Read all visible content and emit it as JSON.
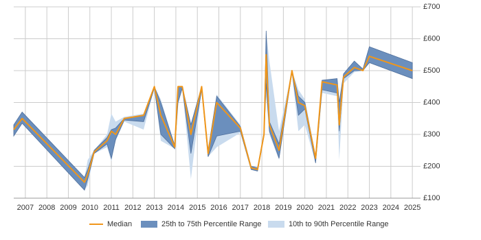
{
  "chart_data": {
    "type": "line",
    "x": [
      2006.46,
      2006.85,
      2009.75,
      2009.9,
      2010.2,
      2010.8,
      2011.0,
      2011.2,
      2011.6,
      2012.5,
      2013.0,
      2013.3,
      2013.95,
      2014.1,
      2014.3,
      2014.7,
      2015.2,
      2015.5,
      2015.9,
      2017.0,
      2017.5,
      2017.8,
      2018.1,
      2018.2,
      2018.35,
      2018.8,
      2019.4,
      2019.7,
      2020.0,
      2020.5,
      2020.8,
      2021.5,
      2021.6,
      2021.8,
      2022.3,
      2022.7,
      2023.0,
      2025.0
    ],
    "series": [
      {
        "name": "Median",
        "color": "#f0961a",
        "values": [
          315,
          350,
          150,
          175,
          245,
          280,
          310,
          300,
          350,
          360,
          450,
          360,
          260,
          450,
          450,
          300,
          450,
          240,
          400,
          320,
          195,
          190,
          300,
          550,
          330,
          250,
          500,
          400,
          390,
          225,
          465,
          455,
          330,
          480,
          510,
          500,
          545,
          500
        ]
      },
      {
        "name": "25th to 75th Percentile Range",
        "color": "#6b8fbd",
        "low": [
          295,
          335,
          125,
          160,
          240,
          270,
          225,
          285,
          345,
          340,
          445,
          300,
          255,
          400,
          445,
          240,
          440,
          230,
          295,
          310,
          190,
          185,
          295,
          460,
          310,
          225,
          495,
          360,
          380,
          210,
          440,
          430,
          310,
          475,
          500,
          500,
          525,
          475
        ],
        "high": [
          330,
          370,
          165,
          190,
          250,
          290,
          315,
          320,
          350,
          360,
          450,
          400,
          265,
          450,
          450,
          330,
          450,
          250,
          420,
          325,
          200,
          195,
          305,
          625,
          340,
          270,
          500,
          420,
          400,
          230,
          470,
          475,
          400,
          490,
          530,
          505,
          575,
          525
        ]
      },
      {
        "name": "10th to 90th Percentile Range",
        "color": "#c9dbee",
        "low": [
          295,
          335,
          125,
          140,
          240,
          260,
          215,
          280,
          340,
          315,
          445,
          280,
          255,
          400,
          445,
          160,
          440,
          230,
          260,
          305,
          190,
          185,
          290,
          420,
          300,
          220,
          490,
          310,
          330,
          210,
          430,
          420,
          220,
          460,
          495,
          500,
          525,
          475
        ],
        "high": [
          330,
          370,
          165,
          220,
          250,
          300,
          365,
          340,
          355,
          365,
          450,
          410,
          265,
          450,
          450,
          335,
          450,
          250,
          425,
          330,
          200,
          195,
          305,
          625,
          530,
          310,
          500,
          440,
          410,
          235,
          470,
          475,
          405,
          490,
          530,
          505,
          575,
          525
        ]
      }
    ],
    "xlim": [
      2006.46,
      2025.38
    ],
    "xticks": [
      2007,
      2008,
      2009,
      2010,
      2011,
      2012,
      2013,
      2014,
      2015,
      2016,
      2017,
      2018,
      2019,
      2020,
      2021,
      2022,
      2023,
      2024,
      2025
    ],
    "ylim": [
      100,
      700
    ],
    "yticks": [
      {
        "value": 100,
        "label": "£100"
      },
      {
        "value": 200,
        "label": "£200"
      },
      {
        "value": 300,
        "label": "£300"
      },
      {
        "value": 400,
        "label": "£400"
      },
      {
        "value": 500,
        "label": "£500"
      },
      {
        "value": 600,
        "label": "£600"
      },
      {
        "value": 700,
        "label": "£700"
      }
    ],
    "grid": true,
    "legend": "bottom"
  }
}
